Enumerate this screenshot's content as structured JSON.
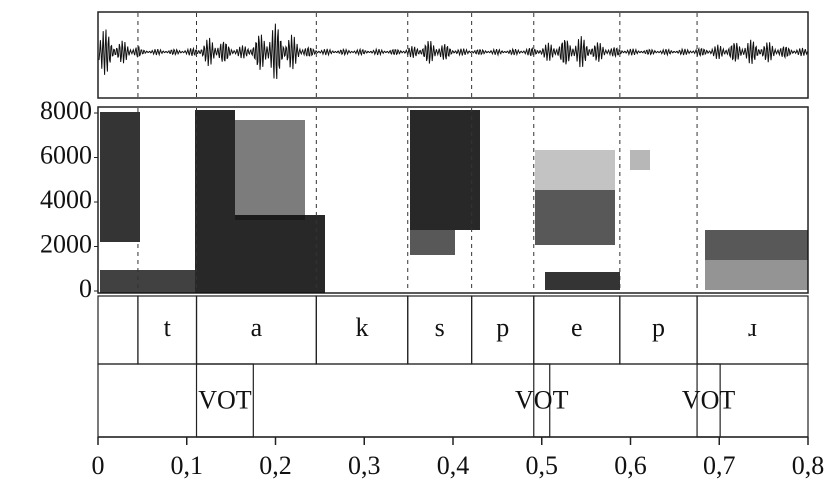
{
  "chart_data": {
    "type": "segmentation",
    "xlim": [
      0,
      0.8
    ],
    "xticks": [
      0,
      {
        "value": 0.1,
        "label": "0,1"
      },
      {
        "value": 0.2,
        "label": "0,2"
      },
      {
        "value": 0.3,
        "label": "0,3"
      },
      {
        "value": 0.4,
        "label": "0,4"
      },
      {
        "value": 0.5,
        "label": "0,5"
      },
      {
        "value": 0.6,
        "label": "0,6"
      },
      {
        "value": 0.7,
        "label": "0,7"
      },
      {
        "value": 0.8,
        "label": "0,8"
      }
    ],
    "ylim": [
      0,
      8000
    ],
    "yticks": [
      0,
      2000,
      4000,
      6000,
      8000
    ],
    "phones": [
      {
        "label": null,
        "start": 0,
        "end": 0.045
      },
      {
        "label": "t",
        "start": 0.045,
        "end": 0.111
      },
      {
        "label": "a",
        "start": 0.111,
        "end": 0.246
      },
      {
        "label": "k",
        "start": 0.246,
        "end": 0.349
      },
      {
        "label": "s",
        "start": 0.349,
        "end": 0.421
      },
      {
        "label": "p",
        "start": 0.421,
        "end": 0.491
      },
      {
        "label": "e",
        "start": 0.491,
        "end": 0.588
      },
      {
        "label": "p",
        "start": 0.588,
        "end": 0.675
      },
      {
        "label": "ɹ",
        "start": 0.675,
        "end": 0.8
      }
    ],
    "vot": [
      {
        "label": "VOT",
        "start": 0.111,
        "end": 0.175
      },
      {
        "label": "VOT",
        "start": 0.491,
        "end": 0.509
      },
      {
        "label": "VOT",
        "start": 0.675,
        "end": 0.701
      }
    ]
  }
}
